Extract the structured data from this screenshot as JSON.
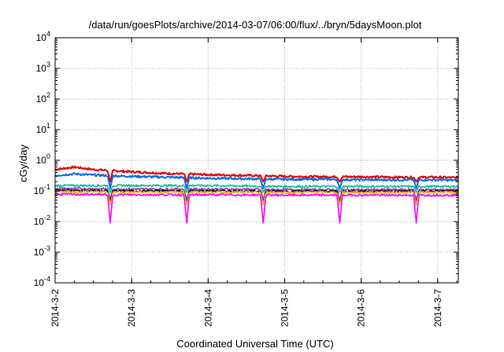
{
  "chart_data": {
    "type": "line",
    "title": "/data/run/goesPlots/archive/2014-03-07/06:00/flux/../bryn/5daysMoon.plot",
    "xlabel": "Coordinated Universal Time (UTC)",
    "ylabel": "cGy/day",
    "y_scale": "log",
    "ylim": [
      0.0001,
      10000
    ],
    "xlim_days": [
      0,
      5.27
    ],
    "grid": true,
    "legend": "none",
    "x_ticks": [
      {
        "pos": 0,
        "label": "2014-3-2"
      },
      {
        "pos": 1,
        "label": "2014-3-3"
      },
      {
        "pos": 2,
        "label": "2014-3-4"
      },
      {
        "pos": 3,
        "label": "2014-3-5"
      },
      {
        "pos": 4,
        "label": "2014-3-6"
      },
      {
        "pos": 5,
        "label": "2014-3-7"
      }
    ],
    "y_ticks": [
      {
        "exp": -4,
        "base": "10",
        "sup": "-4"
      },
      {
        "exp": -3,
        "base": "10",
        "sup": "-3"
      },
      {
        "exp": -2,
        "base": "10",
        "sup": "-2"
      },
      {
        "exp": -1,
        "base": "10",
        "sup": "-1"
      },
      {
        "exp": 0,
        "base": "10",
        "sup": "0"
      },
      {
        "exp": 1,
        "base": "10",
        "sup": "1"
      },
      {
        "exp": 2,
        "base": "10",
        "sup": "2"
      },
      {
        "exp": 3,
        "base": "10",
        "sup": "3"
      },
      {
        "exp": 4,
        "base": "10",
        "sup": "4"
      }
    ],
    "dips_days": [
      0.72,
      1.72,
      2.72,
      3.72,
      4.72
    ],
    "series": [
      {
        "color": "#e00000",
        "x": [
          0,
          0.25,
          0.5,
          1.0,
          1.5,
          2.0,
          2.5,
          3.0,
          3.5,
          4.0,
          4.5,
          5.0,
          5.27
        ],
        "y": [
          0.5,
          0.6,
          0.5,
          0.42,
          0.37,
          0.34,
          0.32,
          0.3,
          0.29,
          0.29,
          0.28,
          0.28,
          0.27
        ],
        "dip_min": 0.2
      },
      {
        "color": "#0a6ee0",
        "x": [
          0,
          0.25,
          0.5,
          1.0,
          1.5,
          2.0,
          2.5,
          3.0,
          3.5,
          4.0,
          4.5,
          5.0,
          5.27
        ],
        "y": [
          0.32,
          0.36,
          0.33,
          0.3,
          0.28,
          0.26,
          0.25,
          0.24,
          0.24,
          0.23,
          0.23,
          0.23,
          0.22
        ],
        "dip_min": 0.12
      },
      {
        "color": "#10c090",
        "x": [
          0,
          1.0,
          2.0,
          3.0,
          4.0,
          5.0,
          5.27
        ],
        "y": [
          0.15,
          0.15,
          0.15,
          0.14,
          0.14,
          0.14,
          0.14
        ],
        "dip_min": 0.09
      },
      {
        "color": "#9933cc",
        "x": [
          0,
          1.0,
          2.0,
          3.0,
          4.0,
          5.0,
          5.27
        ],
        "y": [
          0.12,
          0.115,
          0.115,
          0.11,
          0.11,
          0.11,
          0.11
        ],
        "dip_min": 0.05
      },
      {
        "color": "#111111",
        "x": [
          0,
          1.0,
          2.0,
          3.0,
          4.0,
          5.0,
          5.27
        ],
        "y": [
          0.105,
          0.1,
          0.1,
          0.098,
          0.098,
          0.098,
          0.098
        ],
        "dip_min": 0.04
      },
      {
        "color": "#e8b020",
        "x": [
          0,
          1.0,
          2.0,
          3.0,
          4.0,
          5.0,
          5.27
        ],
        "y": [
          0.095,
          0.092,
          0.092,
          0.09,
          0.09,
          0.09,
          0.09
        ],
        "dip_min": 0.035
      },
      {
        "color": "#ff00ff",
        "x": [
          0,
          1.0,
          2.0,
          3.0,
          4.0,
          5.0,
          5.27
        ],
        "y": [
          0.078,
          0.075,
          0.075,
          0.073,
          0.073,
          0.073,
          0.073
        ],
        "dip_min": 0.009
      }
    ]
  }
}
